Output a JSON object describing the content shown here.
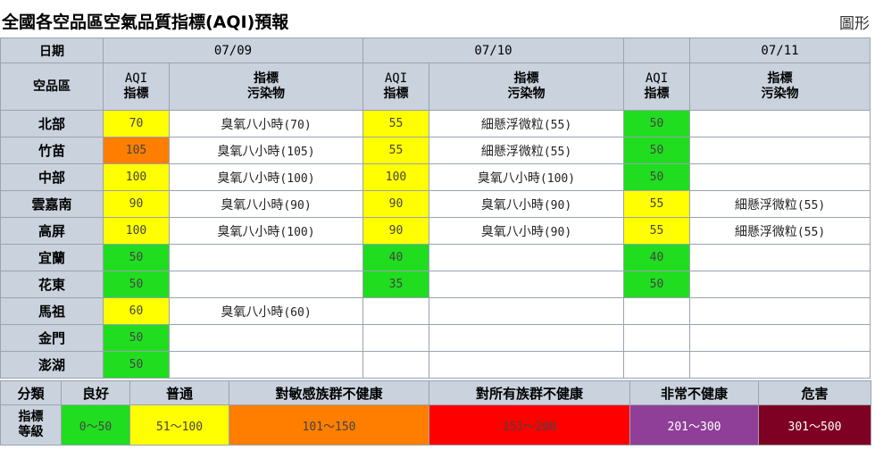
{
  "page": {
    "title": "全國各空品區空氣品質指標(AQI)預報",
    "chart_link": "圖形"
  },
  "header": {
    "date_label": "日期",
    "region_label": "空品區",
    "dates": [
      "07/09",
      "07/10",
      "07/11"
    ],
    "aqi_en": "AQI",
    "aqi_zh": "指標",
    "pol_line1": "指標",
    "pol_line2": "污染物"
  },
  "rows": [
    {
      "region": "北部",
      "d": [
        {
          "aqi": "70",
          "pol": "臭氧八小時",
          "val": "(70)",
          "color": "yellow"
        },
        {
          "aqi": "55",
          "pol": "細懸浮微粒",
          "val": "(55)",
          "color": "yellow"
        },
        {
          "aqi": "50",
          "pol": "",
          "val": "",
          "color": "green"
        }
      ]
    },
    {
      "region": "竹苗",
      "d": [
        {
          "aqi": "105",
          "pol": "臭氧八小時",
          "val": "(105)",
          "color": "orange"
        },
        {
          "aqi": "55",
          "pol": "細懸浮微粒",
          "val": "(55)",
          "color": "yellow"
        },
        {
          "aqi": "50",
          "pol": "",
          "val": "",
          "color": "green"
        }
      ]
    },
    {
      "region": "中部",
      "d": [
        {
          "aqi": "100",
          "pol": "臭氧八小時",
          "val": "(100)",
          "color": "yellow"
        },
        {
          "aqi": "100",
          "pol": "臭氧八小時",
          "val": "(100)",
          "color": "yellow"
        },
        {
          "aqi": "50",
          "pol": "",
          "val": "",
          "color": "green"
        }
      ]
    },
    {
      "region": "雲嘉南",
      "d": [
        {
          "aqi": "90",
          "pol": "臭氧八小時",
          "val": "(90)",
          "color": "yellow"
        },
        {
          "aqi": "90",
          "pol": "臭氧八小時",
          "val": "(90)",
          "color": "yellow"
        },
        {
          "aqi": "55",
          "pol": "細懸浮微粒",
          "val": "(55)",
          "color": "yellow"
        }
      ]
    },
    {
      "region": "高屏",
      "d": [
        {
          "aqi": "100",
          "pol": "臭氧八小時",
          "val": "(100)",
          "color": "yellow"
        },
        {
          "aqi": "90",
          "pol": "臭氧八小時",
          "val": "(90)",
          "color": "yellow"
        },
        {
          "aqi": "55",
          "pol": "細懸浮微粒",
          "val": "(55)",
          "color": "yellow"
        }
      ]
    },
    {
      "region": "宜蘭",
      "d": [
        {
          "aqi": "50",
          "pol": "",
          "val": "",
          "color": "green"
        },
        {
          "aqi": "40",
          "pol": "",
          "val": "",
          "color": "green"
        },
        {
          "aqi": "40",
          "pol": "",
          "val": "",
          "color": "green"
        }
      ]
    },
    {
      "region": "花東",
      "d": [
        {
          "aqi": "50",
          "pol": "",
          "val": "",
          "color": "green"
        },
        {
          "aqi": "35",
          "pol": "",
          "val": "",
          "color": "green"
        },
        {
          "aqi": "50",
          "pol": "",
          "val": "",
          "color": "green"
        }
      ]
    },
    {
      "region": "馬祖",
      "d": [
        {
          "aqi": "60",
          "pol": "臭氧八小時",
          "val": "(60)",
          "color": "yellow"
        },
        {
          "aqi": "",
          "pol": "",
          "val": "",
          "color": "none"
        },
        {
          "aqi": "",
          "pol": "",
          "val": "",
          "color": "none"
        }
      ]
    },
    {
      "region": "金門",
      "d": [
        {
          "aqi": "50",
          "pol": "",
          "val": "",
          "color": "green"
        },
        {
          "aqi": "",
          "pol": "",
          "val": "",
          "color": "none"
        },
        {
          "aqi": "",
          "pol": "",
          "val": "",
          "color": "none"
        }
      ]
    },
    {
      "region": "澎湖",
      "d": [
        {
          "aqi": "50",
          "pol": "",
          "val": "",
          "color": "green"
        },
        {
          "aqi": "",
          "pol": "",
          "val": "",
          "color": "none"
        },
        {
          "aqi": "",
          "pol": "",
          "val": "",
          "color": "none"
        }
      ]
    }
  ],
  "legend": {
    "category_label": "分類",
    "grade_line1": "指標",
    "grade_line2": "等級",
    "levels": [
      {
        "name": "良好",
        "range": "0～50",
        "color": "#20dd20",
        "text": "#444444"
      },
      {
        "name": "普通",
        "range": "51～100",
        "color": "#ffff00",
        "text": "#444444"
      },
      {
        "name": "對敏感族群不健康",
        "range": "101～150",
        "color": "#ff7e00",
        "text": "#444444"
      },
      {
        "name": "對所有族群不健康",
        "range": "151～200",
        "color": "#ff0000",
        "text": "#444444"
      },
      {
        "name": "非常不健康",
        "range": "201～300",
        "color": "#8f3f97",
        "text": "#ffffff"
      },
      {
        "name": "危害",
        "range": "301～500",
        "color": "#7e0023",
        "text": "#ffffff"
      }
    ]
  }
}
